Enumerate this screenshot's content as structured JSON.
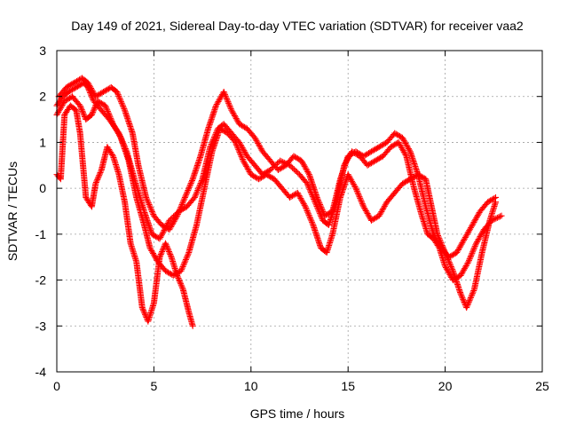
{
  "chart_data": {
    "type": "scatter",
    "title": "Day 149 of 2021, Sidereal Day-to-day VTEC variation (SDTVAR) for receiver vaa2",
    "xlabel": "GPS time / hours",
    "ylabel": "SDTVAR / TECUs",
    "xlim": [
      0,
      25
    ],
    "ylim": [
      -4,
      3
    ],
    "xticks": [
      0,
      5,
      10,
      15,
      20,
      25
    ],
    "yticks": [
      -4,
      -3,
      -2,
      -1,
      0,
      1,
      2,
      3
    ],
    "grid": true,
    "marker": "plus",
    "color": "#ff0000",
    "series": [
      {
        "x": [
          0.0,
          0.3,
          0.6,
          1.0,
          1.4,
          1.6,
          1.9,
          2.3,
          2.7,
          3.2,
          3.6,
          4.0,
          4.5,
          4.9,
          5.3,
          5.8,
          6.3,
          6.7,
          7.1,
          7.5,
          7.9,
          8.3,
          8.6,
          9.0,
          9.4,
          9.8,
          10.2,
          10.6,
          11.0,
          11.5,
          12.0,
          12.5,
          12.9,
          13.3,
          13.7,
          14.0,
          14.4,
          14.8,
          15.2,
          15.6,
          16.0,
          16.4,
          16.8,
          17.2,
          17.6,
          18.0,
          18.4,
          18.8,
          19.1,
          19.4,
          19.7,
          20.0,
          20.4,
          20.8,
          21.2,
          21.6,
          22.0,
          22.4,
          22.9
        ],
        "y": [
          1.8,
          2.0,
          2.1,
          2.2,
          2.3,
          2.2,
          1.9,
          1.7,
          1.5,
          1.2,
          0.8,
          0.2,
          -0.5,
          -1.0,
          -1.1,
          -0.7,
          -0.5,
          -0.4,
          -0.2,
          0.2,
          0.9,
          1.3,
          1.4,
          1.2,
          1.0,
          0.7,
          0.5,
          0.3,
          0.4,
          0.6,
          0.5,
          0.3,
          0.1,
          -0.3,
          -0.7,
          -0.8,
          -0.3,
          0.5,
          0.8,
          0.7,
          0.5,
          0.6,
          0.7,
          0.9,
          1.0,
          0.7,
          0.0,
          -0.6,
          -1.0,
          -1.1,
          -1.3,
          -1.7,
          -2.0,
          -1.9,
          -1.6,
          -1.2,
          -0.9,
          -0.7,
          -0.6
        ]
      },
      {
        "x": [
          0.0,
          0.4,
          0.8,
          1.2,
          1.5,
          1.8,
          2.1,
          2.5,
          2.9,
          3.3,
          3.7,
          4.1,
          4.5,
          4.8,
          5.2,
          5.6,
          6.0,
          6.4,
          6.8,
          7.2,
          7.6,
          8.0,
          8.4,
          8.8,
          9.2,
          9.6,
          10.0,
          10.4,
          10.8,
          11.2,
          11.6,
          12.0,
          12.4,
          12.8,
          13.2,
          13.6,
          13.9,
          14.2,
          14.6,
          15.0,
          15.4,
          15.8,
          16.2,
          16.6,
          17.0,
          17.4,
          17.8,
          18.2,
          18.6,
          19.0,
          19.3,
          19.6,
          20.0,
          20.4,
          20.8,
          21.1,
          21.5,
          21.9,
          22.3,
          22.6
        ],
        "y": [
          1.6,
          1.9,
          2.0,
          1.8,
          1.5,
          1.6,
          1.9,
          1.8,
          1.4,
          1.1,
          0.6,
          -0.2,
          -0.8,
          -1.3,
          -1.6,
          -1.8,
          -1.9,
          -1.8,
          -1.4,
          -0.8,
          0.0,
          0.8,
          1.3,
          1.2,
          1.0,
          0.6,
          0.3,
          0.2,
          0.3,
          0.2,
          0.0,
          -0.2,
          -0.1,
          -0.4,
          -0.8,
          -1.3,
          -1.4,
          -1.0,
          -0.2,
          0.3,
          0.0,
          -0.4,
          -0.7,
          -0.6,
          -0.3,
          -0.1,
          0.1,
          0.2,
          0.3,
          0.2,
          -0.4,
          -1.0,
          -1.4,
          -1.8,
          -2.3,
          -2.6,
          -2.2,
          -1.4,
          -0.7,
          -0.3
        ]
      },
      {
        "x": [
          0.1,
          0.5,
          0.9,
          1.3,
          1.6,
          2.0,
          2.4,
          2.8,
          3.1,
          3.5,
          3.9,
          4.2,
          4.6,
          5.0,
          5.4,
          5.8,
          6.2,
          6.6,
          7.0,
          7.4,
          7.8,
          8.2,
          8.6,
          9.0,
          9.4,
          9.8,
          10.2,
          10.6,
          11.0,
          11.4,
          11.8,
          12.2,
          12.6,
          13.0,
          13.4,
          13.8,
          14.2,
          14.6,
          15.0,
          15.4,
          15.8,
          16.2,
          16.6,
          17.0,
          17.4,
          17.8,
          18.2,
          18.6,
          19.0,
          19.4,
          19.8,
          20.2,
          20.6,
          21.0,
          21.4,
          21.8,
          22.2,
          22.6
        ],
        "y": [
          2.0,
          2.2,
          2.3,
          2.4,
          2.3,
          2.0,
          2.1,
          2.2,
          2.1,
          1.7,
          1.2,
          0.5,
          -0.2,
          -0.6,
          -0.8,
          -0.9,
          -0.6,
          -0.2,
          0.2,
          0.7,
          1.3,
          1.8,
          2.1,
          1.7,
          1.4,
          1.3,
          1.1,
          0.8,
          0.6,
          0.4,
          0.5,
          0.7,
          0.6,
          0.3,
          -0.2,
          -0.6,
          -0.5,
          0.2,
          0.7,
          0.8,
          0.7,
          0.8,
          0.9,
          1.0,
          1.2,
          1.1,
          0.8,
          0.3,
          -0.4,
          -1.0,
          -1.3,
          -1.5,
          -1.4,
          -1.1,
          -0.8,
          -0.5,
          -0.3,
          -0.2
        ]
      },
      {
        "x": [
          0.0,
          0.2,
          0.4,
          0.7,
          1.0,
          1.2,
          1.5,
          1.8,
          2.0,
          2.3,
          2.6,
          2.9,
          3.2,
          3.5,
          3.8,
          4.1,
          4.4,
          4.7,
          5.0,
          5.3,
          5.6,
          5.9,
          6.2,
          6.5,
          6.8,
          7.0
        ],
        "y": [
          0.3,
          0.2,
          1.6,
          1.8,
          1.7,
          1.2,
          -0.2,
          -0.4,
          0.1,
          0.4,
          0.9,
          0.7,
          0.3,
          -0.3,
          -1.2,
          -1.6,
          -2.6,
          -2.9,
          -2.5,
          -1.5,
          -1.2,
          -1.5,
          -1.9,
          -2.2,
          -2.7,
          -3.0
        ]
      }
    ]
  }
}
